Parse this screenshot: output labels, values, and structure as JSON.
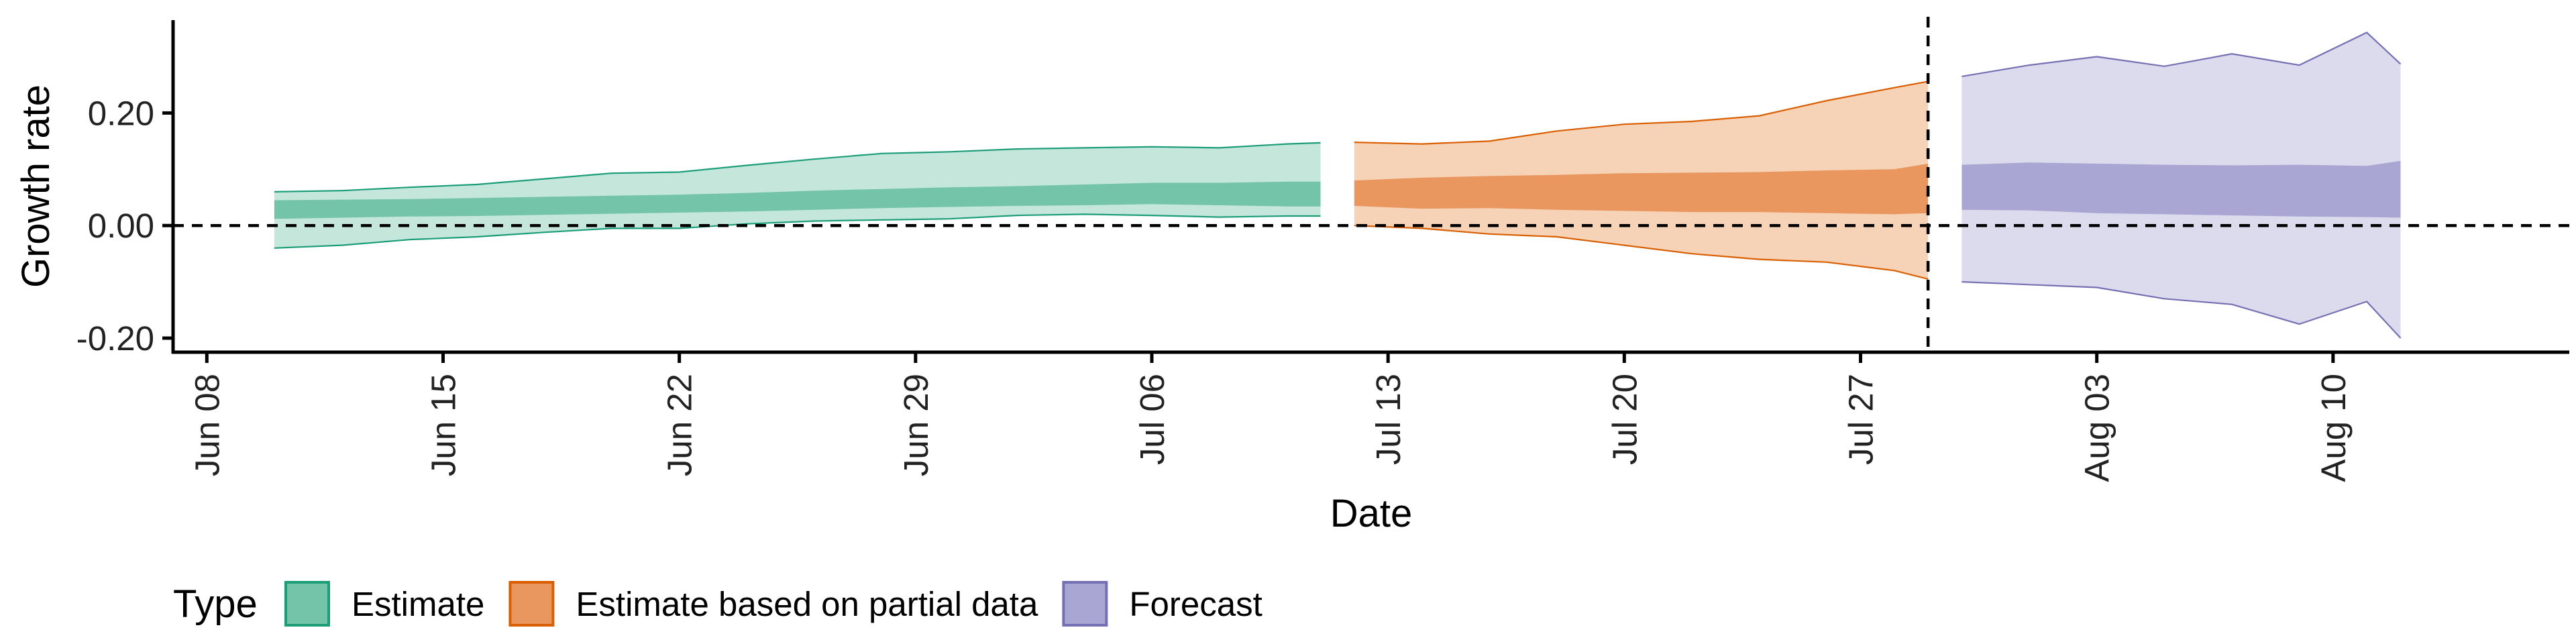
{
  "chart_data": {
    "type": "area",
    "xlabel": "Date",
    "ylabel": "Growth rate",
    "x_ticks": [
      "2020-06-08",
      "2020-06-15",
      "2020-06-22",
      "2020-06-29",
      "2020-07-06",
      "2020-07-13",
      "2020-07-20",
      "2020-07-27",
      "2020-08-03",
      "2020-08-10"
    ],
    "x_tick_labels": [
      "Jun 08",
      "Jun 15",
      "Jun 22",
      "Jun 29",
      "Jul 06",
      "Jul 13",
      "Jul 20",
      "Jul 27",
      "Aug 03",
      "Aug 10"
    ],
    "xlim": [
      "2020-06-07",
      "2020-08-17"
    ],
    "y_ticks": [
      0.2,
      0.0,
      -0.2
    ],
    "y_tick_labels": [
      "0.20",
      "0.00",
      "-0.20"
    ],
    "ylim": [
      -0.225,
      0.365
    ],
    "hline_y": 0,
    "vline_x": "2020-07-29",
    "legend": {
      "title": "Type",
      "position": "bottom",
      "items": [
        {
          "label": "Estimate",
          "fill": "#74c4a9",
          "border": "#1b9e77"
        },
        {
          "label": "Estimate based on partial data",
          "fill": "#e9975e",
          "border": "#d95f02"
        },
        {
          "label": "Forecast",
          "fill": "#a9a6d3",
          "border": "#7570b3"
        }
      ]
    },
    "series": [
      {
        "name": "Estimate",
        "outer_fill": "#c5e7db",
        "inner_fill": "#74c4a9",
        "line_color": "#1b9e77",
        "dates": [
          "2020-06-10",
          "2020-06-12",
          "2020-06-14",
          "2020-06-16",
          "2020-06-18",
          "2020-06-20",
          "2020-06-22",
          "2020-06-24",
          "2020-06-26",
          "2020-06-28",
          "2020-06-30",
          "2020-07-02",
          "2020-07-04",
          "2020-07-06",
          "2020-07-08",
          "2020-07-10",
          "2020-07-11"
        ],
        "upper90": [
          0.06,
          0.062,
          0.068,
          0.073,
          0.083,
          0.093,
          0.095,
          0.107,
          0.118,
          0.128,
          0.131,
          0.136,
          0.138,
          0.14,
          0.138,
          0.145,
          0.147
        ],
        "upper50": [
          0.045,
          0.046,
          0.047,
          0.049,
          0.051,
          0.053,
          0.055,
          0.058,
          0.062,
          0.065,
          0.068,
          0.07,
          0.073,
          0.076,
          0.076,
          0.078,
          0.078
        ],
        "lower50": [
          0.012,
          0.014,
          0.016,
          0.017,
          0.019,
          0.021,
          0.023,
          0.025,
          0.028,
          0.031,
          0.033,
          0.035,
          0.036,
          0.038,
          0.036,
          0.034,
          0.034
        ],
        "lower90": [
          -0.04,
          -0.035,
          -0.025,
          -0.02,
          -0.012,
          -0.005,
          -0.005,
          0.003,
          0.008,
          0.01,
          0.012,
          0.018,
          0.02,
          0.018,
          0.015,
          0.017,
          0.017
        ]
      },
      {
        "name": "Estimate based on partial data",
        "outer_fill": "#f6d2b7",
        "inner_fill": "#e9975e",
        "line_color": "#d95f02",
        "dates": [
          "2020-07-12",
          "2020-07-14",
          "2020-07-16",
          "2020-07-18",
          "2020-07-20",
          "2020-07-22",
          "2020-07-24",
          "2020-07-26",
          "2020-07-28",
          "2020-07-29"
        ],
        "upper90": [
          0.148,
          0.145,
          0.15,
          0.168,
          0.18,
          0.185,
          0.195,
          0.222,
          0.245,
          0.256
        ],
        "upper50": [
          0.08,
          0.085,
          0.088,
          0.09,
          0.093,
          0.094,
          0.095,
          0.098,
          0.1,
          0.11
        ],
        "lower50": [
          0.035,
          0.03,
          0.031,
          0.028,
          0.026,
          0.024,
          0.024,
          0.022,
          0.02,
          0.022
        ],
        "lower90": [
          0.0,
          -0.005,
          -0.015,
          -0.02,
          -0.035,
          -0.05,
          -0.06,
          -0.065,
          -0.08,
          -0.095
        ]
      },
      {
        "name": "Forecast",
        "outer_fill": "#dcdbed",
        "inner_fill": "#a9a6d3",
        "line_color": "#7570b3",
        "dates": [
          "2020-07-30",
          "2020-08-01",
          "2020-08-03",
          "2020-08-05",
          "2020-08-07",
          "2020-08-09",
          "2020-08-11",
          "2020-08-12"
        ],
        "upper90": [
          0.265,
          0.285,
          0.3,
          0.283,
          0.305,
          0.285,
          0.343,
          0.287
        ],
        "upper50": [
          0.108,
          0.112,
          0.11,
          0.108,
          0.107,
          0.108,
          0.106,
          0.115
        ],
        "lower50": [
          0.028,
          0.027,
          0.022,
          0.02,
          0.018,
          0.016,
          0.015,
          0.014
        ],
        "lower90": [
          -0.1,
          -0.105,
          -0.11,
          -0.13,
          -0.14,
          -0.175,
          -0.135,
          -0.2
        ]
      }
    ]
  }
}
